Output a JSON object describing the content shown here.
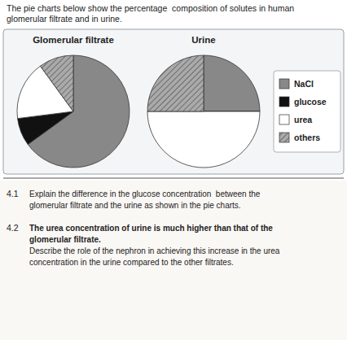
{
  "title": [
    "The pie charts below show the percentage  composition of solutes in human",
    "glomerular filtrate and in urine."
  ],
  "chart_data": [
    {
      "type": "pie",
      "title": "Glomerular filtrate",
      "categories": [
        "NaCl",
        "glucose",
        "urea",
        "others"
      ],
      "values": [
        65,
        8,
        17,
        10
      ],
      "colors": [
        "#888888",
        "#111111",
        "#ffffff",
        "#aaaaaa"
      ]
    },
    {
      "type": "pie",
      "title": "Urine",
      "categories": [
        "NaCl",
        "glucose",
        "urea",
        "others"
      ],
      "values": [
        25,
        0.001,
        50,
        25
      ],
      "colors": [
        "#888888",
        "#111111",
        "#ffffff",
        "#aaaaaa"
      ],
      "legend": "right"
    }
  ],
  "annotations": [
    {
      "number": "4.1",
      "emphasis": [],
      "text": [
        "Explain the difference in the glucose concentration  between the",
        "glomerular filtrate and the urine as shown in the pie charts."
      ]
    },
    {
      "number": "4.2",
      "emphasis": [
        "The urea concentration of urine is much higher than that of the",
        "glomerular filtrate."
      ],
      "text": [
        "Describe the role of the nephron in achieving this increase in the urea",
        "concentration in the urine compared to the other filtrates."
      ]
    }
  ]
}
